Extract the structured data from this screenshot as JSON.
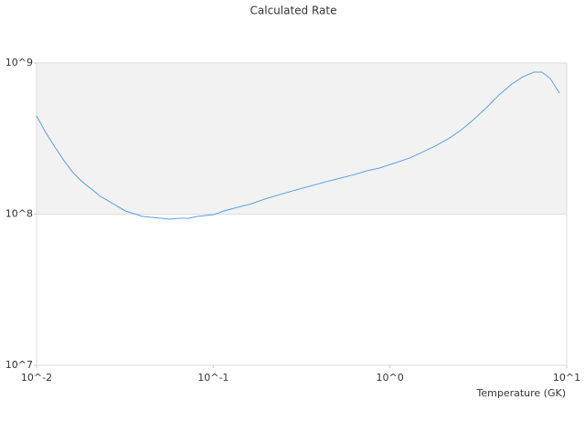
{
  "chart_data": {
    "type": "line",
    "title": "Calculated Rate",
    "xlabel": "Temperature (GK)",
    "xscale": "log",
    "yscale": "log",
    "x": [
      0.01,
      0.01126,
      0.0127,
      0.0143,
      0.0161,
      0.0181,
      0.0204,
      0.023,
      0.0259,
      0.0318,
      0.0398,
      0.0505,
      0.0569,
      0.0641,
      0.0722,
      0.0813,
      0.1007,
      0.115,
      0.137,
      0.164,
      0.196,
      0.261,
      0.336,
      0.436,
      0.522,
      0.631,
      0.745,
      0.871,
      1.08,
      1.29,
      1.47,
      1.8,
      2.18,
      2.54,
      2.97,
      3.51,
      4.14,
      4.89,
      5.65,
      6.52,
      7.25,
      8.07,
      9.1
    ],
    "values": [
      447000000,
      347000000,
      278000000,
      226000000,
      188000000,
      164000000,
      147000000,
      131000000,
      121000000,
      105000000,
      96600000,
      94000000,
      92700000,
      94000000,
      94000000,
      96600000,
      99300000,
      105000000,
      111000000,
      117000000,
      126000000,
      139000000,
      151000000,
      164000000,
      173000000,
      183000000,
      194000000,
      202000000,
      219000000,
      235000000,
      252000000,
      282000000,
      320000000,
      362000000,
      422000000,
      506000000,
      615000000,
      726000000,
      811000000,
      870000000,
      870000000,
      789000000,
      632000000
    ],
    "color": "#5aa0e6",
    "xlim": [
      0.01,
      10
    ],
    "ylim": [
      10000000,
      1000000000
    ],
    "xticks": [
      {
        "value": 0.01,
        "label": "10^-2"
      },
      {
        "value": 0.1,
        "label": "10^-1"
      },
      {
        "value": 1,
        "label": "10^0"
      },
      {
        "value": 10,
        "label": "10^1"
      }
    ],
    "yticks": [
      {
        "value": 10000000,
        "label": "10^7"
      },
      {
        "value": 100000000,
        "label": "10^8"
      },
      {
        "value": 1000000000,
        "label": "10^9"
      }
    ],
    "band": {
      "range": [
        100000000,
        1000000000
      ],
      "color": "#f2f2f2"
    }
  }
}
